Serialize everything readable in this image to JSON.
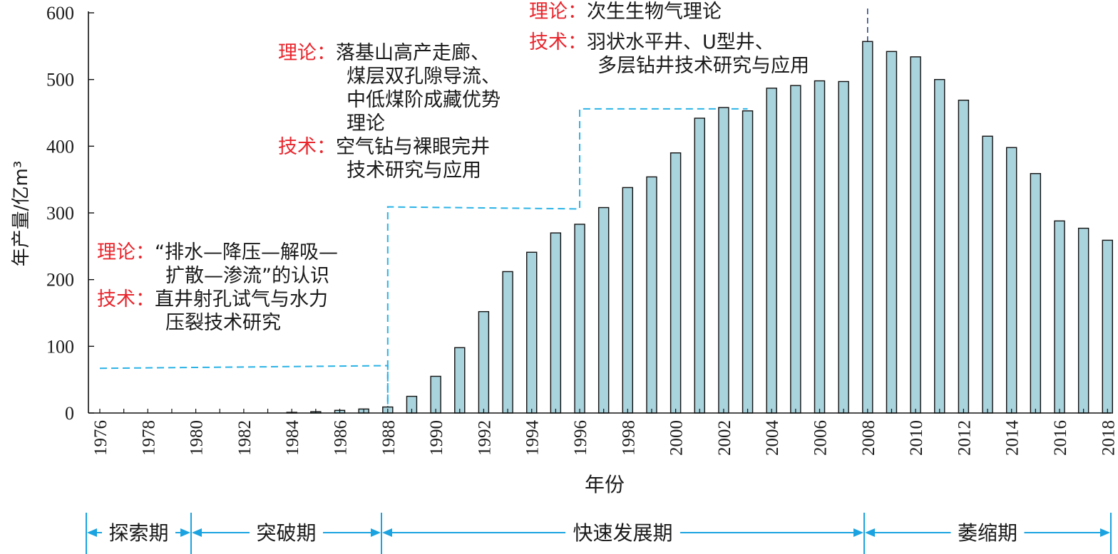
{
  "chart_data": {
    "type": "bar",
    "ylabel": "年产量/亿m³",
    "xlabel": "年份",
    "ylim": [
      0,
      600
    ],
    "yticks": [
      0,
      100,
      200,
      300,
      400,
      500,
      600
    ],
    "xticks": [
      "1976",
      "1978",
      "1980",
      "1982",
      "1984",
      "1986",
      "1988",
      "1990",
      "1992",
      "1994",
      "1996",
      "1998",
      "2000",
      "2002",
      "2004",
      "2006",
      "2008",
      "2010",
      "2012",
      "2014",
      "2016",
      "2018"
    ],
    "categories": [
      "1976",
      "1977",
      "1978",
      "1979",
      "1980",
      "1981",
      "1982",
      "1983",
      "1984",
      "1985",
      "1986",
      "1987",
      "1988",
      "1989",
      "1990",
      "1991",
      "1992",
      "1993",
      "1994",
      "1995",
      "1996",
      "1997",
      "1998",
      "1999",
      "2000",
      "2001",
      "2002",
      "2003",
      "2004",
      "2005",
      "2006",
      "2007",
      "2008",
      "2009",
      "2010",
      "2011",
      "2012",
      "2013",
      "2014",
      "2015",
      "2016",
      "2017",
      "2018"
    ],
    "values": [
      0,
      0,
      0,
      0,
      0,
      0,
      0,
      0,
      1,
      2,
      4,
      6,
      9,
      25,
      55,
      98,
      152,
      212,
      241,
      270,
      283,
      308,
      338,
      354,
      390,
      442,
      458,
      453,
      487,
      491,
      498,
      497,
      557,
      542,
      534,
      500,
      469,
      415,
      398,
      359,
      288,
      277,
      259
    ],
    "bar_color": "#a9d3dd",
    "step_line_color": "#2bb3e6",
    "periods": [
      {
        "label": "探索期",
        "start": "1976",
        "end": "1980"
      },
      {
        "label": "突破期",
        "start": "1980",
        "end": "1988"
      },
      {
        "label": "快速发展期",
        "start": "1988",
        "end": "2008"
      },
      {
        "label": "萎缩期",
        "start": "2008",
        "end": "2018"
      }
    ]
  },
  "annotations": {
    "a1": {
      "theory_label": "理论：",
      "theory_lines": [
        "“排水—降压—解吸—",
        "扩散—渗流”的认识"
      ],
      "tech_label": "技术：",
      "tech_lines": [
        "直井射孔试气与水力",
        "压裂技术研究"
      ]
    },
    "a2": {
      "theory_label": "理论：",
      "theory_lines": [
        "落基山高产走廊、",
        "煤层双孔隙导流、",
        "中低煤阶成藏优势",
        "理论"
      ],
      "tech_label": "技术：",
      "tech_lines": [
        "空气钻与裸眼完井",
        "技术研究与应用"
      ]
    },
    "a3": {
      "theory_label": "理论：",
      "theory_lines": [
        "次生生物气理论"
      ],
      "tech_label": "技术：",
      "tech_lines": [
        "羽状水平井、U型井、",
        "多层钻井技术研究与应用"
      ]
    }
  }
}
